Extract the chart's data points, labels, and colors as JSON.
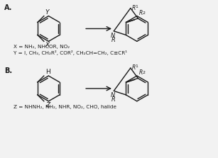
{
  "bg_color": "#f2f2f2",
  "line_color": "#1a1a1a",
  "text_color": "#1a1a1a",
  "label_A": "A.",
  "label_B": "B.",
  "x_def": "X = NH₂, NHCOR, NO₂",
  "y_def": "Y = I, CH₃, CH₂R², COR², CH₂CH=CH₂, C≡CR¹",
  "z_def": "Z = NHNH₂, NH₂, NHR, NO₂, CHO, halide",
  "lw": 1.0
}
